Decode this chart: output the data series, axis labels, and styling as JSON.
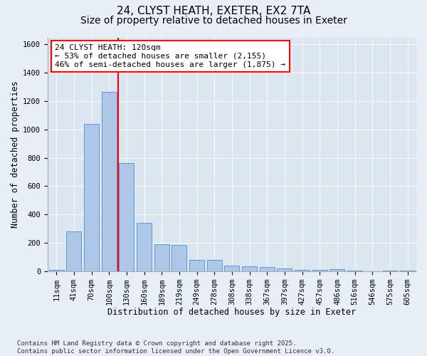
{
  "title_line1": "24, CLYST HEATH, EXETER, EX2 7TA",
  "title_line2": "Size of property relative to detached houses in Exeter",
  "xlabel": "Distribution of detached houses by size in Exeter",
  "ylabel": "Number of detached properties",
  "categories": [
    "11sqm",
    "41sqm",
    "70sqm",
    "100sqm",
    "130sqm",
    "160sqm",
    "189sqm",
    "219sqm",
    "249sqm",
    "278sqm",
    "308sqm",
    "338sqm",
    "367sqm",
    "397sqm",
    "427sqm",
    "457sqm",
    "486sqm",
    "516sqm",
    "546sqm",
    "575sqm",
    "605sqm"
  ],
  "values": [
    8,
    280,
    1040,
    1265,
    760,
    340,
    190,
    185,
    80,
    80,
    40,
    35,
    30,
    20,
    10,
    7,
    15,
    2,
    0,
    2,
    2
  ],
  "bar_color": "#aec6e8",
  "bar_edge_color": "#5b9bd5",
  "vline_color": "red",
  "vline_x_index": 3.5,
  "annotation_text": "24 CLYST HEATH: 120sqm\n← 53% of detached houses are smaller (2,155)\n46% of semi-detached houses are larger (1,875) →",
  "ylim": [
    0,
    1650
  ],
  "yticks": [
    0,
    200,
    400,
    600,
    800,
    1000,
    1200,
    1400,
    1600
  ],
  "bg_color": "#e8eef5",
  "plot_bg_color": "#dce6f0",
  "footer": "Contains HM Land Registry data © Crown copyright and database right 2025.\nContains public sector information licensed under the Open Government Licence v3.0.",
  "title_fontsize": 11,
  "subtitle_fontsize": 10,
  "axis_label_fontsize": 8.5,
  "tick_fontsize": 7.5,
  "annotation_fontsize": 8,
  "footer_fontsize": 6.5
}
